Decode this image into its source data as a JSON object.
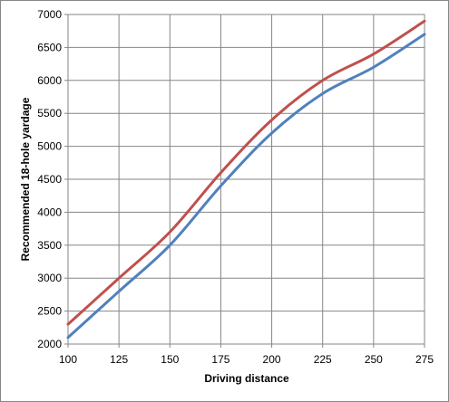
{
  "chart_data": {
    "type": "line",
    "title": "",
    "xlabel": "Driving distance",
    "ylabel": "Recommended 18-hole yardage",
    "xlim": [
      100,
      275
    ],
    "ylim": [
      2000,
      7000
    ],
    "x_ticks": [
      100,
      125,
      150,
      175,
      200,
      225,
      250,
      275
    ],
    "y_ticks": [
      2000,
      2500,
      3000,
      3500,
      4000,
      4500,
      5000,
      5500,
      6000,
      6500,
      7000
    ],
    "grid": true,
    "legend": "none",
    "x": [
      100,
      125,
      150,
      175,
      200,
      225,
      250,
      275
    ],
    "series": [
      {
        "color": "#c0504d",
        "values": [
          2300,
          3000,
          3700,
          4600,
          5400,
          6000,
          6400,
          6900
        ]
      },
      {
        "color": "#4f81bd",
        "values": [
          2100,
          2800,
          3500,
          4400,
          5200,
          5800,
          6200,
          6700
        ]
      }
    ]
  }
}
